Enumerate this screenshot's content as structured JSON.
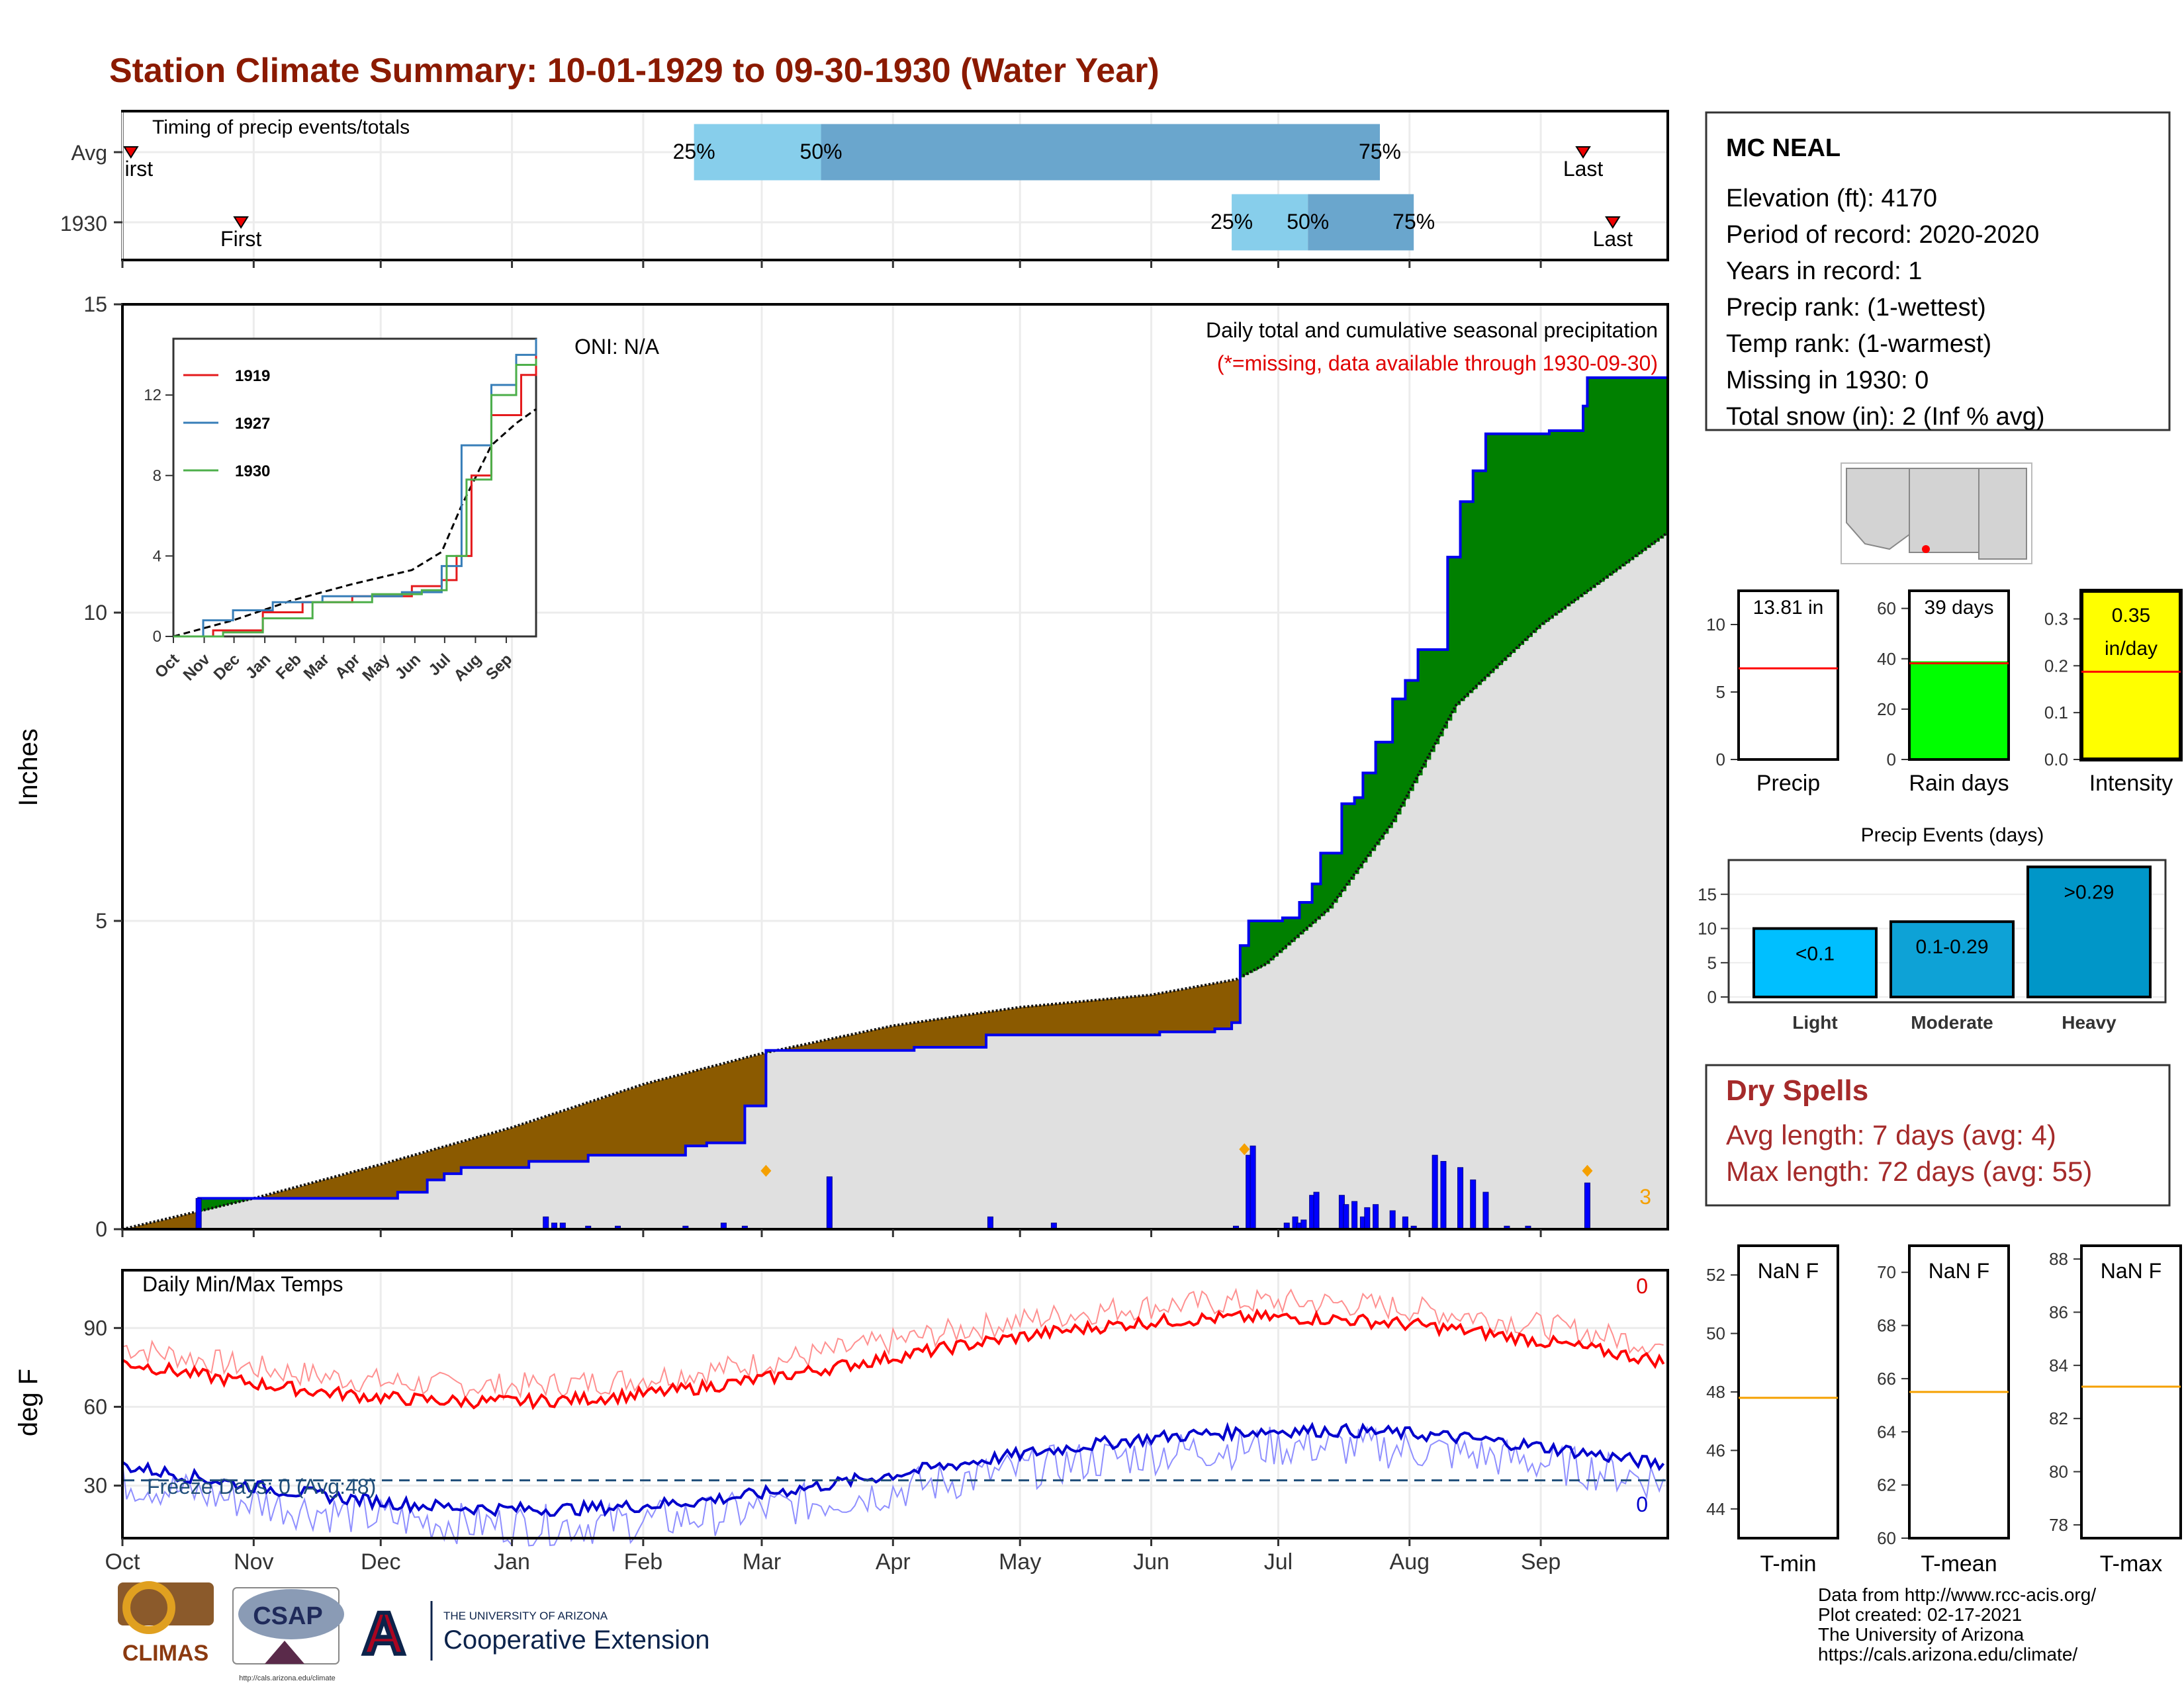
{
  "title": "Station Climate Summary: 10-01-1929 to 09-30-1930 (Water Year)",
  "months": [
    "Oct",
    "Nov",
    "Dec",
    "Jan",
    "Feb",
    "Mar",
    "Apr",
    "May",
    "Jun",
    "Jul",
    "Aug",
    "Sep"
  ],
  "timing": {
    "title": "Timing of precip events/totals",
    "rows": [
      {
        "label": "Avg",
        "first_label": "irst",
        "last_label": "Last",
        "first_day": 2,
        "last_day": 345,
        "p25_day": 135,
        "p50_day": 165,
        "p75_day": 297,
        "p25_label": "25%",
        "p50_label": "50%",
        "p75_label": "75%"
      },
      {
        "label": "1930",
        "first_label": "First",
        "last_label": "Last",
        "first_day": 28,
        "last_day": 352,
        "p25_day": 262,
        "p50_day": 280,
        "p75_day": 305,
        "p25_label": "25%",
        "p50_label": "50%",
        "p75_label": "75%"
      }
    ]
  },
  "precip_panel": {
    "ylabel": "Inches",
    "oni": "ONI: N/A",
    "legend_title": "Daily total and cumulative seasonal precipitation",
    "legend_missing": "(*=missing, data available through 1930-09-30)",
    "count_label": "3",
    "yticks": [
      0,
      5,
      10,
      15
    ],
    "ymax": 15
  },
  "inset": {
    "yticks": [
      0,
      4,
      8,
      12
    ],
    "months": [
      "Oct",
      "Nov",
      "Dec",
      "Jan",
      "Feb",
      "Mar",
      "Apr",
      "May",
      "Jun",
      "Jul",
      "Aug",
      "Sep"
    ],
    "series": [
      {
        "name": "1919",
        "color": "#e41a1c"
      },
      {
        "name": "1927",
        "color": "#377eb8"
      },
      {
        "name": "1930",
        "color": "#4daf4a"
      }
    ]
  },
  "temp_panel": {
    "ylabel": "deg F",
    "title": "Daily Min/Max Temps",
    "freeze_label": "Freeze Days: 0 (Avg:48)",
    "max_count": "0",
    "min_count": "0",
    "yticks": [
      30,
      60,
      90
    ]
  },
  "station": {
    "name": "MC NEAL",
    "lines": [
      "Elevation (ft): 4170",
      "Period of record: 2020-2020",
      "Years in record: 1",
      "Precip rank:  (1-wettest)",
      "Temp rank:  (1-warmest)",
      "Missing in 1930: 0",
      "Total snow (in): 2 (Inf % avg)"
    ]
  },
  "mini_bars": [
    {
      "label": "Precip",
      "value_label": "13.81 in",
      "yticks": [
        "0",
        "5",
        "10"
      ],
      "fill": "#ffffff",
      "avg_frac": 0.54
    },
    {
      "label": "Rain days",
      "value_label": "39 days",
      "yticks": [
        "0",
        "20",
        "40",
        "60"
      ],
      "fill": "#00ff00",
      "avg_frac": 0.57
    },
    {
      "label": "Intensity",
      "value_label": "0.35",
      "value_label2": "in/day",
      "yticks": [
        "0.0",
        "0.1",
        "0.2",
        "0.3"
      ],
      "fill": "#ffff00",
      "avg_frac": 0.52
    }
  ],
  "events": {
    "title": "Precip Events (days)",
    "categories": [
      "Light",
      "Moderate",
      "Heavy"
    ],
    "bar_labels": [
      "<0.1",
      "0.1-0.29",
      ">0.29"
    ],
    "values": [
      10,
      11,
      19
    ],
    "yticks": [
      0,
      5,
      10,
      15
    ],
    "color_light": "#00bfff",
    "color_mod": "#0ea2d6",
    "color_heavy": "#0096c8"
  },
  "dry_spells": {
    "title": "Dry Spells",
    "avg": "Avg length: 7 days (avg: 4)",
    "max": "Max length: 72 days (avg: 55)"
  },
  "temp_boxes": [
    {
      "label": "T-min",
      "value": "NaN F",
      "yticks": [
        "44",
        "46",
        "48",
        "50",
        "52"
      ],
      "avg": 47.8,
      "min": 43,
      "max": 53
    },
    {
      "label": "T-mean",
      "value": "NaN F",
      "yticks": [
        "60",
        "62",
        "64",
        "66",
        "68",
        "70"
      ],
      "avg": 65.5,
      "min": 60,
      "max": 71
    },
    {
      "label": "T-max",
      "value": "NaN F",
      "yticks": [
        "78",
        "80",
        "82",
        "84",
        "86",
        "88"
      ],
      "avg": 83.2,
      "min": 77.5,
      "max": 88.5
    }
  ],
  "credits": [
    "Data from http://www.rcc-acis.org/",
    "Plot created: 02-17-2021",
    "The University of Arizona",
    "https://cals.arizona.edu/climate/"
  ],
  "logos": {
    "climas": "CLIMAS",
    "csap": "CSAP",
    "csap_url": "http://cals.arizona.edu/climate",
    "ua_top": "THE UNIVERSITY OF ARIZONA",
    "ua_bottom": "Cooperative Extension"
  },
  "colors": {
    "title": "#8b1a00",
    "above_avg": "#008000",
    "below_avg": "#8b5a00",
    "avg_area": "#e0e0e0",
    "daily_bar": "#0000ff",
    "dry_title": "#a52a2a"
  }
}
